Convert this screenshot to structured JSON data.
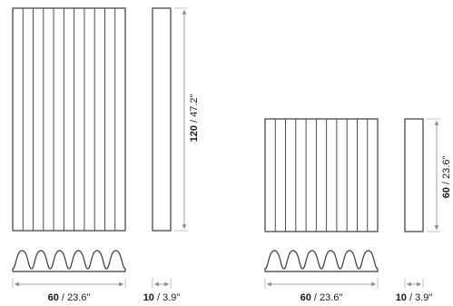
{
  "panel_large": {
    "width_dim": {
      "value": "60",
      "sep": " / ",
      "imperial": "23.6\""
    },
    "depth_dim": {
      "value": "10",
      "sep": " / ",
      "imperial": "3.9\""
    },
    "height_dim": {
      "value": "120",
      "sep": " / ",
      "imperial": "47.2\""
    },
    "flutes": 11
  },
  "panel_small": {
    "width_dim": {
      "value": "60",
      "sep": " / ",
      "imperial": "23.6\""
    },
    "depth_dim": {
      "value": "10",
      "sep": " / ",
      "imperial": "3.9\""
    },
    "height_dim": {
      "value": "60",
      "sep": " / ",
      "imperial": "23.6\""
    },
    "flutes": 11
  },
  "profile_waves": 6,
  "colors": {
    "line": "#3a3a3a",
    "text": "#1a1a1a",
    "dim": "#8a8a8a"
  }
}
